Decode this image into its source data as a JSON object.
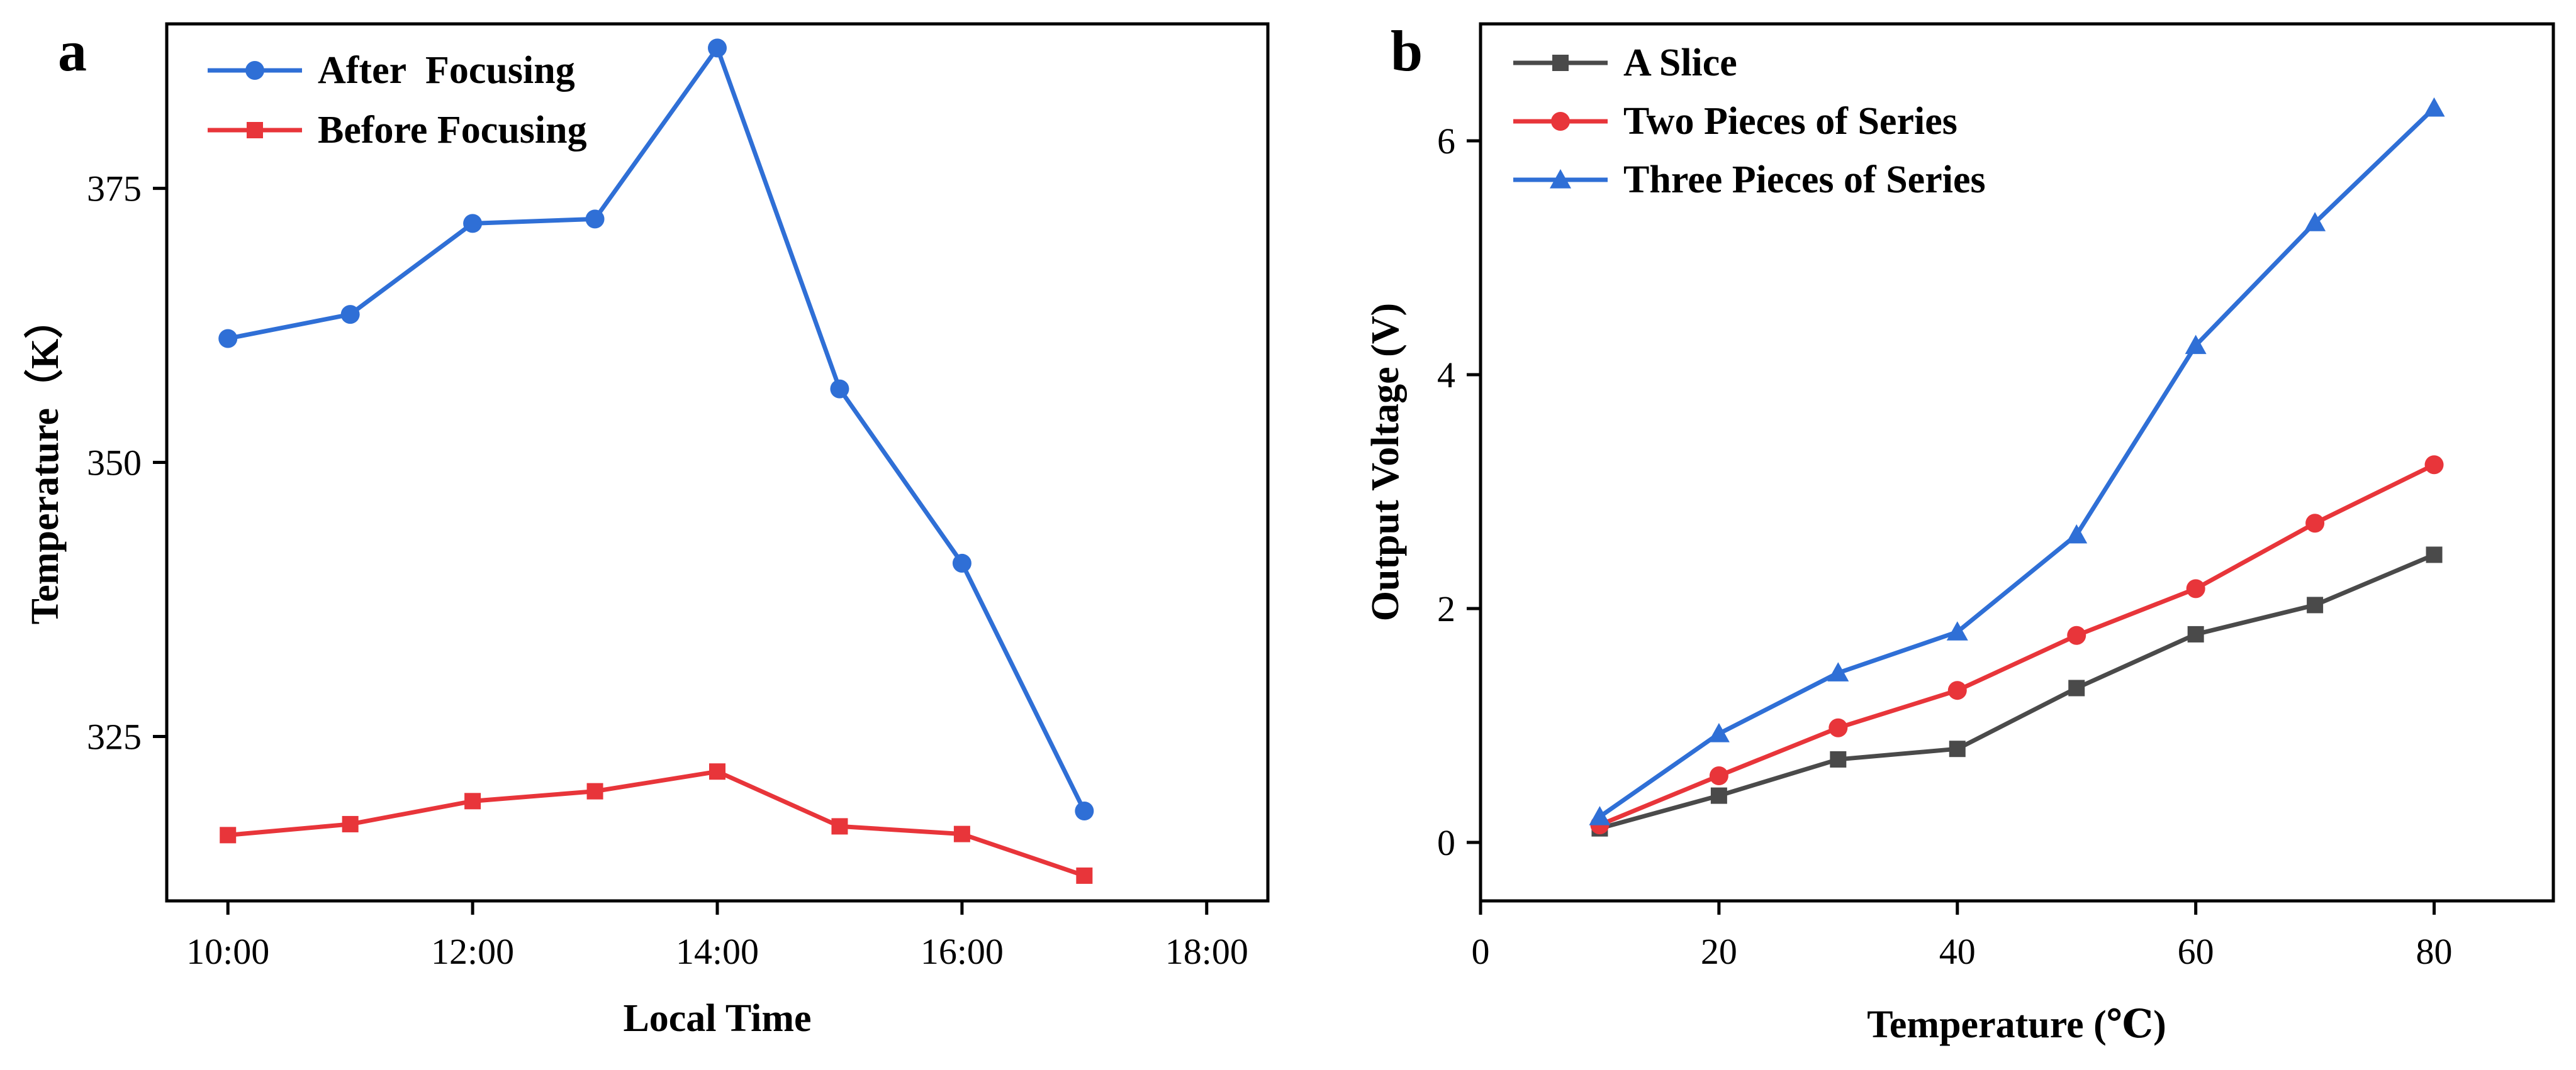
{
  "chart_data": [
    {
      "type": "line",
      "panel": "a",
      "title": "",
      "xlabel": "Local Time",
      "ylabel": "Temperature（K）",
      "x_tick_labels": [
        "10:00",
        "12:00",
        "14:00",
        "16:00",
        "18:00"
      ],
      "x_tick_values": [
        10,
        12,
        14,
        16,
        18
      ],
      "y_tick_labels": [
        "325",
        "350",
        "375"
      ],
      "y_tick_values": [
        325,
        350,
        375
      ],
      "xlim": [
        9.5,
        18.5
      ],
      "ylim": [
        310,
        390
      ],
      "x": [
        10,
        11,
        12,
        13,
        14,
        15,
        16,
        17
      ],
      "series": [
        {
          "name": "After  Focusing",
          "color": "#2f6fd6",
          "marker": "circle",
          "values": [
            361.3,
            363.5,
            371.8,
            372.2,
            387.8,
            356.7,
            340.8,
            318.2
          ]
        },
        {
          "name": "Before Focusing",
          "color": "#e8353a",
          "marker": "square",
          "values": [
            316.0,
            317.0,
            319.1,
            320.0,
            321.8,
            316.8,
            316.1,
            312.3
          ]
        }
      ],
      "legend_position": "top-left",
      "grid": false
    },
    {
      "type": "line",
      "panel": "b",
      "title": "",
      "xlabel": "Temperature (℃)",
      "ylabel": "Output  Voltage (V)",
      "x_tick_labels": [
        "0",
        "20",
        "40",
        "60",
        "80"
      ],
      "x_tick_values": [
        0,
        20,
        40,
        60,
        80
      ],
      "y_tick_labels": [
        "0",
        "2",
        "4",
        "6"
      ],
      "y_tick_values": [
        0,
        2,
        4,
        6
      ],
      "xlim": [
        0,
        90
      ],
      "ylim": [
        -0.5,
        7
      ],
      "x": [
        10,
        20,
        30,
        40,
        50,
        60,
        70,
        80
      ],
      "series": [
        {
          "name": "A Slice",
          "color": "#4a4a4a",
          "marker": "square",
          "values": [
            0.12,
            0.4,
            0.71,
            0.8,
            1.32,
            1.78,
            2.03,
            2.46
          ]
        },
        {
          "name": "Two Pieces of Series",
          "color": "#e8353a",
          "marker": "circle",
          "values": [
            0.15,
            0.57,
            0.98,
            1.3,
            1.77,
            2.17,
            2.73,
            3.23
          ]
        },
        {
          "name": "Three Pieces of Series",
          "color": "#2f6fd6",
          "marker": "triangle",
          "values": [
            0.22,
            0.93,
            1.45,
            1.8,
            2.63,
            4.25,
            5.3,
            6.28
          ]
        }
      ],
      "legend_position": "top-left",
      "grid": false
    }
  ]
}
